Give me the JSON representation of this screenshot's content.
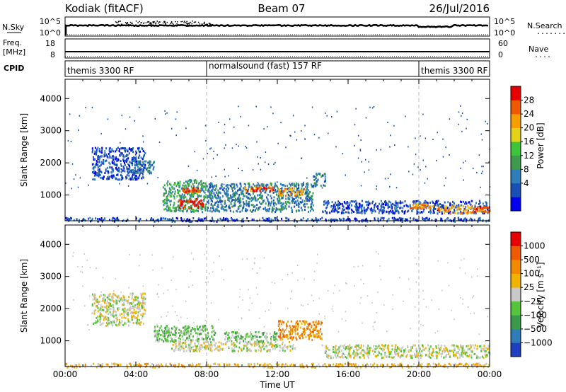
{
  "header": {
    "radar": "Kodiak (fitACF)",
    "beam": "Beam 07",
    "date": "26/Jul/2016"
  },
  "nsky_panel": {
    "left_label": "N.Sky",
    "left_ticks": [
      "10^5",
      "10^0"
    ],
    "right_label": "N.Search",
    "right_ticks": [
      "10^5",
      "10^0"
    ],
    "right_legend": "........"
  },
  "freq_panel": {
    "left_label_1": "Freq.",
    "left_label_2": "[MHz]",
    "left_ticks": [
      "18",
      "8"
    ],
    "right_label": "Nave",
    "right_ticks": [
      "60",
      "0"
    ],
    "right_legend": "...."
  },
  "cpid_panel": {
    "label": "CPID",
    "segments": [
      {
        "label": "themis 3300 RF",
        "start_hour": 0.0,
        "end_hour": 8.0
      },
      {
        "label": "normalsound (fast) 157 RF",
        "start_hour": 8.0,
        "end_hour": 20.0
      },
      {
        "label": "themis 3300 RF",
        "start_hour": 20.0,
        "end_hour": 24.0
      }
    ]
  },
  "chart_data": [
    {
      "type": "heatmap",
      "name": "power",
      "ylabel": "Slant Range [km]",
      "yticks": [
        "4000",
        "3000",
        "2000",
        "1000"
      ],
      "ylim": [
        200,
        4600
      ],
      "xlim": [
        0,
        24
      ],
      "colorbar_label": "Power [dB]",
      "colorbar_ticks": [
        "28",
        "24",
        "20",
        "16",
        "12",
        "8",
        "4"
      ],
      "colorbar_colors": [
        "#0000ee",
        "#1a4fb5",
        "#2f7ebb",
        "#3d9a4c",
        "#3ec43a",
        "#e3d21a",
        "#f5a000",
        "#ef5a00",
        "#e80000"
      ],
      "regions": [
        {
          "t0": 0.0,
          "t1": 24.0,
          "r0": 200,
          "r1": 320,
          "level": 1
        },
        {
          "t0": 1.5,
          "t1": 4.5,
          "r0": 1500,
          "r1": 2500,
          "level": 1
        },
        {
          "t0": 3.8,
          "t1": 5.0,
          "r0": 1700,
          "r1": 2100,
          "level": 2
        },
        {
          "t0": 5.5,
          "t1": 8.0,
          "r0": 500,
          "r1": 1500,
          "level": 3
        },
        {
          "t0": 6.3,
          "t1": 7.8,
          "r0": 620,
          "r1": 900,
          "level": 8
        },
        {
          "t0": 6.6,
          "t1": 7.6,
          "r0": 1100,
          "r1": 1250,
          "level": 7
        },
        {
          "t0": 8.0,
          "t1": 14.0,
          "r0": 500,
          "r1": 1400,
          "level": 2
        },
        {
          "t0": 10.0,
          "t1": 11.8,
          "r0": 1150,
          "r1": 1300,
          "level": 7
        },
        {
          "t0": 12.0,
          "t1": 13.5,
          "r0": 1000,
          "r1": 1250,
          "level": 6
        },
        {
          "t0": 14.0,
          "t1": 14.7,
          "r0": 1300,
          "r1": 1700,
          "level": 2
        },
        {
          "t0": 14.5,
          "t1": 24.0,
          "r0": 450,
          "r1": 850,
          "level": 1
        },
        {
          "t0": 19.5,
          "t1": 20.8,
          "r0": 600,
          "r1": 750,
          "level": 6
        },
        {
          "t0": 21.0,
          "t1": 23.0,
          "r0": 450,
          "r1": 700,
          "level": 6
        },
        {
          "t0": 23.0,
          "t1": 24.0,
          "r0": 500,
          "r1": 650,
          "level": 7
        }
      ]
    },
    {
      "type": "heatmap",
      "name": "velocity",
      "ylabel": "Slant Range [km]",
      "yticks": [
        "4000",
        "3000",
        "2000",
        "1000"
      ],
      "ylim": [
        200,
        4600
      ],
      "xlim": [
        0,
        24
      ],
      "xticks": [
        "00:00",
        "04:00",
        "08:00",
        "12:00",
        "16:00",
        "20:00",
        "00:00"
      ],
      "xlabel": "Time UT",
      "colorbar_label": "Velocity [m s⁻¹]",
      "colorbar_ticks": [
        "1000",
        "500",
        "100",
        "25",
        "-25",
        "-100",
        "-500",
        "-1000"
      ],
      "colorbar_colors": [
        "#1d3fc0",
        "#2f7cb8",
        "#3a9a4a",
        "#56c43a",
        "#c8c8c8",
        "#f0b400",
        "#f08a00",
        "#f05a00",
        "#e80000"
      ],
      "regions": [
        {
          "t0": 0.0,
          "t1": 24.0,
          "r0": 200,
          "r1": 320,
          "level": 5
        },
        {
          "t0": 1.5,
          "t1": 4.5,
          "r0": 1500,
          "r1": 2500,
          "level": 4
        },
        {
          "t0": 5.0,
          "t1": 8.5,
          "r0": 1000,
          "r1": 1500,
          "level": 3
        },
        {
          "t0": 6.0,
          "t1": 13.0,
          "r0": 700,
          "r1": 1000,
          "level": 4
        },
        {
          "t0": 9.0,
          "t1": 12.0,
          "r0": 1000,
          "r1": 1300,
          "level": 3
        },
        {
          "t0": 12.0,
          "t1": 14.5,
          "r0": 1050,
          "r1": 1650,
          "level": 6
        },
        {
          "t0": 14.5,
          "t1": 24.0,
          "r0": 500,
          "r1": 900,
          "level": 4
        }
      ]
    }
  ],
  "colors": {
    "axis": "#000000",
    "dashed_marker": "#bbbbbb",
    "trace": "#000000"
  }
}
